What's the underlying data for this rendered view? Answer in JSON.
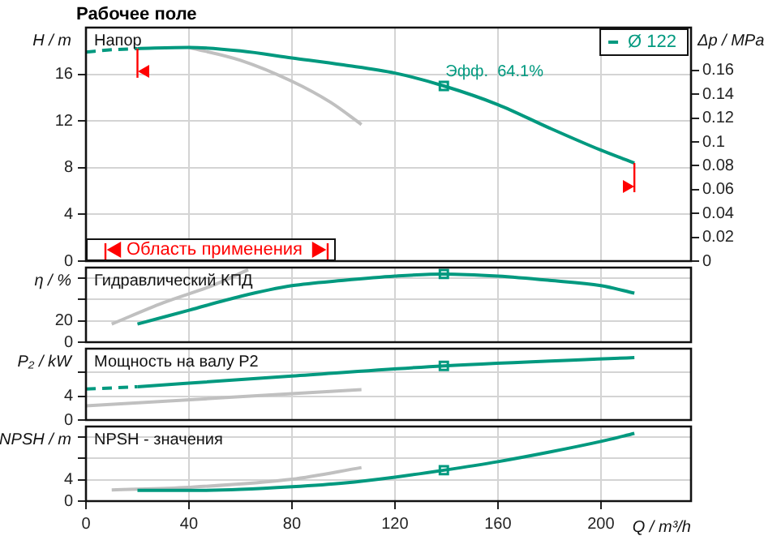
{
  "chart_data": [
    {
      "type": "line",
      "title": "Рабочее поле",
      "subtitle": "Напор",
      "ylabel": "H / m",
      "y2label": "Δp / MPa",
      "xlim": [
        0,
        235
      ],
      "xticks": [
        0,
        40,
        80,
        120,
        160,
        200
      ],
      "ylim": [
        0,
        20
      ],
      "yticks": [
        0,
        4,
        8,
        12,
        16
      ],
      "y2lim": [
        0,
        0.196
      ],
      "y2ticks": [
        0,
        0.02,
        0.04,
        0.06,
        0.08,
        0.1,
        0.12,
        0.14,
        0.16
      ],
      "tick_labels": "y",
      "grid": true,
      "legend": "top right",
      "series": [
        {
          "color": "#00997f",
          "line_style": "dashed",
          "x": [
            0,
            10,
            20
          ],
          "values": [
            17.9,
            18.1,
            18.2
          ]
        },
        {
          "name": "Ø 122",
          "color": "#00997f",
          "x": [
            20,
            40,
            60,
            80,
            100,
            120,
            139,
            160,
            180,
            200,
            213
          ],
          "values": [
            18.2,
            18.3,
            18.0,
            17.4,
            16.8,
            16.1,
            15.0,
            13.4,
            11.4,
            9.5,
            8.4
          ]
        },
        {
          "color": "#c0c0c0",
          "x": [
            40,
            60,
            80,
            95,
            107
          ],
          "values": [
            18.3,
            17.2,
            15.4,
            13.6,
            11.7
          ]
        },
        {
          "type": "scatter",
          "marker": "square",
          "color": "#00997f",
          "x": [
            139
          ],
          "values": [
            15.0
          ]
        }
      ],
      "annotations": [
        {
          "text": "Эфф.  64.1%",
          "x": 139,
          "y": 15.0
        },
        "Область применения"
      ],
      "ref_lines": [
        {
          "axis": "x",
          "value": 20,
          "color": "#ff0000"
        },
        {
          "axis": "x",
          "value": 213,
          "color": "#ff0000"
        }
      ]
    },
    {
      "type": "line",
      "title": "Гидравлический КПД",
      "ylabel": "η / %",
      "xlim": [
        0,
        235
      ],
      "xticks": [
        0,
        40,
        80,
        120,
        160,
        200
      ],
      "ylim": [
        0,
        70
      ],
      "yticks": [
        0,
        20,
        {
          "value": 40,
          "label": null
        },
        {
          "value": 60,
          "label": null
        }
      ],
      "tick_labels": "y",
      "grid": true,
      "series": [
        {
          "color": "#00997f",
          "x": [
            20,
            40,
            60,
            80,
            100,
            120,
            139,
            160,
            180,
            200,
            213
          ],
          "values": [
            17,
            30,
            43,
            53,
            58,
            62,
            64,
            62,
            58,
            53,
            46
          ]
        },
        {
          "color": "#c0c0c0",
          "x": [
            10,
            30,
            50,
            63
          ],
          "values": [
            17,
            37,
            54,
            68
          ]
        },
        {
          "type": "scatter",
          "marker": "square",
          "color": "#00997f",
          "x": [
            139
          ],
          "values": [
            64
          ]
        }
      ]
    },
    {
      "type": "line",
      "title": "Мощность на валу P2",
      "ylabel": "P₂ / kW",
      "xlim": [
        0,
        235
      ],
      "xticks": [
        0,
        40,
        80,
        120,
        160,
        200
      ],
      "ylim": [
        0,
        12
      ],
      "yticks": [
        0,
        4,
        {
          "value": 8,
          "label": null
        }
      ],
      "tick_labels": "y",
      "grid": true,
      "series": [
        {
          "color": "#00997f",
          "line_style": "dashed",
          "x": [
            0,
            20
          ],
          "values": [
            5.2,
            5.6
          ]
        },
        {
          "color": "#00997f",
          "x": [
            20,
            80,
            139,
            213
          ],
          "values": [
            5.6,
            7.4,
            9.1,
            10.5
          ]
        },
        {
          "color": "#c0c0c0",
          "x": [
            0,
            107
          ],
          "values": [
            2.4,
            5.1
          ]
        },
        {
          "type": "scatter",
          "marker": "square",
          "color": "#00997f",
          "x": [
            139
          ],
          "values": [
            9.1
          ]
        }
      ]
    },
    {
      "type": "line",
      "title": "NPSH - значения",
      "ylabel": "NPSH / m",
      "xlabel": "Q / m³/h",
      "xlim": [
        0,
        235
      ],
      "xticks": [
        0,
        40,
        80,
        120,
        160,
        200
      ],
      "ylim": [
        0,
        14
      ],
      "yticks": [
        0,
        4,
        {
          "value": 8,
          "label": null
        },
        {
          "value": 12,
          "label": null
        }
      ],
      "grid": true,
      "series": [
        {
          "color": "#00997f",
          "x": [
            20,
            40,
            60,
            80,
            100,
            120,
            139,
            160,
            180,
            200,
            213
          ],
          "values": [
            2.0,
            2.0,
            2.2,
            2.7,
            3.4,
            4.5,
            5.8,
            7.4,
            9.2,
            11.2,
            12.7
          ]
        },
        {
          "color": "#c0c0c0",
          "x": [
            10,
            40,
            80,
            107
          ],
          "values": [
            2.1,
            2.6,
            4.1,
            6.3
          ]
        },
        {
          "type": "scatter",
          "marker": "square",
          "color": "#00997f",
          "x": [
            139
          ],
          "values": [
            5.8
          ]
        }
      ]
    }
  ]
}
